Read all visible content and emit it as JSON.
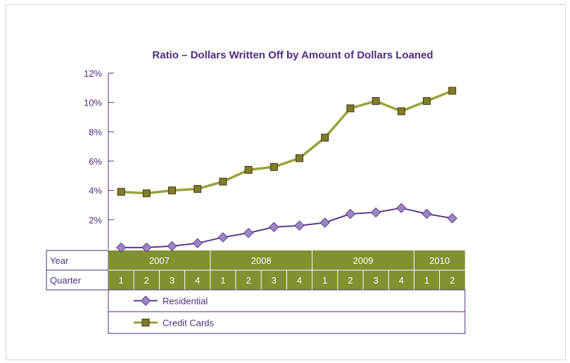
{
  "chart_data": {
    "type": "line",
    "title": "Ratio – Dollars Written Off by Amount of Dollars Loaned",
    "ylim": [
      0,
      12
    ],
    "yticks": [
      "12%",
      "10%",
      "8%",
      "6%",
      "4%",
      "2%"
    ],
    "ytick_values": [
      12,
      10,
      8,
      6,
      4,
      2
    ],
    "table": {
      "year_label": "Year",
      "quarter_label": "Quarter",
      "years": [
        {
          "label": "2007",
          "quarters": 4
        },
        {
          "label": "2008",
          "quarters": 4
        },
        {
          "label": "2009",
          "quarters": 4
        },
        {
          "label": "2010",
          "quarters": 2
        }
      ],
      "quarters": [
        "1",
        "2",
        "3",
        "4",
        "1",
        "2",
        "3",
        "4",
        "1",
        "2",
        "3",
        "4",
        "1",
        "2"
      ]
    },
    "series": [
      {
        "name": "Residential",
        "color": "#5b3a8c",
        "marker": "diamond",
        "values": [
          0.1,
          0.1,
          0.2,
          0.4,
          0.8,
          1.1,
          1.5,
          1.6,
          1.8,
          2.4,
          2.5,
          2.8,
          2.4,
          2.1
        ]
      },
      {
        "name": "Credit Cards",
        "color": "#9aa33a",
        "marker": "square",
        "values": [
          3.9,
          3.8,
          4.0,
          4.1,
          4.6,
          5.4,
          5.6,
          6.2,
          7.6,
          9.6,
          10.1,
          9.4,
          10.1,
          10.8
        ]
      }
    ],
    "grid": false
  },
  "colors": {
    "text": "#4f2d7f",
    "band": "#7f9231",
    "line_purple": "#5b3a8c",
    "line_green": "#9aa33a",
    "marker_purple": "#9b86c3",
    "marker_green": "#807c2a"
  }
}
